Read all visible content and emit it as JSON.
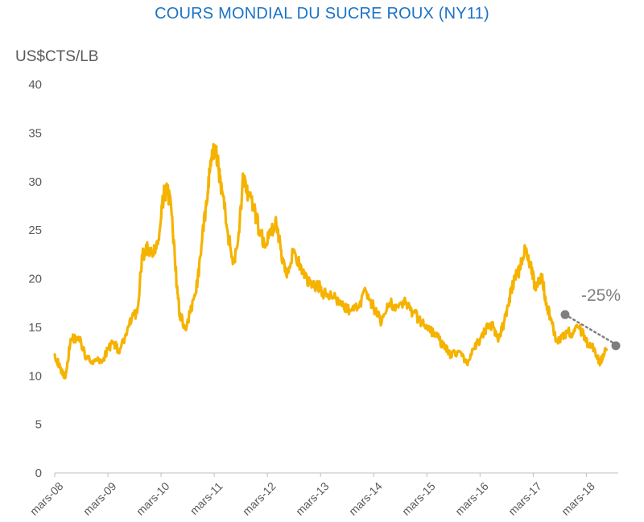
{
  "chart_data": {
    "type": "line",
    "title": "COURS MONDIAL DU SUCRE ROUX (NY11)",
    "ylabel": "US$CTS/LB",
    "xlabel": "",
    "ylim": [
      0,
      40
    ],
    "yticks": [
      0,
      5,
      10,
      15,
      20,
      25,
      30,
      35,
      40
    ],
    "xticks": [
      "mars-08",
      "mars-09",
      "mars-10",
      "mars-11",
      "mars-12",
      "mars-13",
      "mars-14",
      "mars-15",
      "mars-16",
      "mars-17",
      "mars-18"
    ],
    "grid": false,
    "series": [
      {
        "color": "#f5b300",
        "x": [
          2008.0,
          2008.1,
          2008.2,
          2008.3,
          2008.45,
          2008.6,
          2008.75,
          2008.9,
          2009.0,
          2009.1,
          2009.2,
          2009.35,
          2009.45,
          2009.55,
          2009.65,
          2009.75,
          2009.85,
          2009.95,
          2010.05,
          2010.12,
          2010.2,
          2010.3,
          2010.35,
          2010.45,
          2010.55,
          2010.65,
          2010.75,
          2010.85,
          2010.92,
          2011.0,
          2011.08,
          2011.15,
          2011.25,
          2011.35,
          2011.45,
          2011.55,
          2011.65,
          2011.75,
          2011.85,
          2011.95,
          2012.05,
          2012.15,
          2012.25,
          2012.35,
          2012.5,
          2012.65,
          2012.8,
          2012.95,
          2013.1,
          2013.25,
          2013.4,
          2013.55,
          2013.7,
          2013.85,
          2014.0,
          2014.15,
          2014.3,
          2014.45,
          2014.6,
          2014.75,
          2014.9,
          2015.05,
          2015.2,
          2015.35,
          2015.45,
          2015.6,
          2015.75,
          2015.9,
          2016.0,
          2016.15,
          2016.25,
          2016.35,
          2016.45,
          2016.55,
          2016.65,
          2016.75,
          2016.85,
          2016.95,
          2017.05,
          2017.15,
          2017.25,
          2017.35,
          2017.45,
          2017.55,
          2017.65,
          2017.75,
          2017.85,
          2017.95,
          2018.05,
          2018.15,
          2018.25,
          2018.3,
          2018.38
        ],
        "values": [
          12.2,
          10.8,
          9.8,
          13.8,
          14.0,
          11.8,
          11.5,
          11.5,
          12.8,
          13.5,
          12.6,
          14.2,
          16.0,
          16.5,
          22.5,
          23.0,
          22.4,
          24.0,
          28.5,
          29.5,
          26.5,
          19.0,
          16.5,
          14.8,
          16.5,
          18.5,
          22.5,
          28.0,
          31.0,
          33.5,
          31.5,
          29.0,
          25.0,
          21.5,
          24.0,
          30.5,
          28.5,
          27.0,
          25.0,
          23.5,
          24.5,
          26.0,
          23.0,
          20.5,
          23.0,
          20.5,
          19.5,
          19.3,
          18.3,
          18.0,
          17.2,
          16.8,
          17.0,
          18.8,
          17.0,
          15.5,
          17.5,
          17.2,
          17.5,
          16.5,
          15.5,
          14.8,
          14.0,
          12.8,
          12.2,
          12.5,
          11.3,
          12.8,
          13.8,
          15.0,
          15.0,
          13.8,
          15.5,
          18.0,
          20.0,
          21.0,
          23.2,
          21.5,
          18.8,
          20.5,
          17.5,
          15.5,
          13.5,
          14.2,
          14.5,
          14.3,
          15.0,
          14.2,
          13.0,
          12.8,
          11.3,
          11.8,
          12.7
        ]
      }
    ],
    "trend_marker": {
      "x": [
        2017.6,
        2018.6
      ],
      "y": [
        16.3,
        13.1
      ],
      "color": "#7f7f7f"
    },
    "annotation": "-25%"
  }
}
